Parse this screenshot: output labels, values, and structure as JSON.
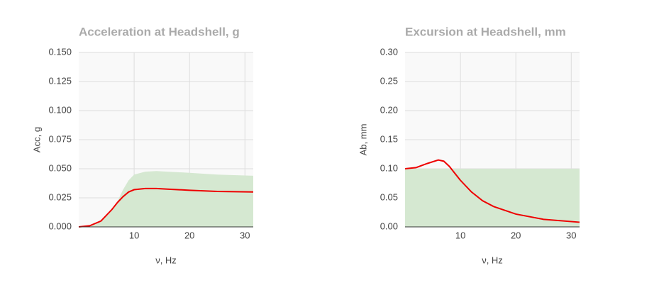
{
  "chart_data": [
    {
      "type": "line",
      "title": "Acceleration at Headshell, g",
      "ylabel": "Acc, g",
      "xlabel": "ν, Hz",
      "x": [
        0,
        2,
        4,
        6,
        7,
        8,
        9,
        10,
        12,
        14,
        16,
        20,
        25,
        31.5
      ],
      "series": [
        {
          "color": "#d5e8d1",
          "area": true,
          "values": [
            0,
            0.001,
            0.005,
            0.015,
            0.022,
            0.032,
            0.04,
            0.045,
            0.0475,
            0.048,
            0.0475,
            0.0465,
            0.045,
            0.044
          ]
        },
        {
          "color": "#ee0000",
          "values": [
            0,
            0.001,
            0.005,
            0.015,
            0.021,
            0.026,
            0.03,
            0.032,
            0.033,
            0.033,
            0.0325,
            0.0315,
            0.0305,
            0.03
          ]
        }
      ],
      "xlim": [
        0,
        31.5
      ],
      "xticks": [
        10,
        20,
        30
      ],
      "ylim": [
        0,
        0.15
      ],
      "yticks": [
        {
          "value": 0,
          "label": "0.000"
        },
        {
          "value": 0.025,
          "label": "0.025"
        },
        {
          "value": 0.05,
          "label": "0.050"
        },
        {
          "value": 0.075,
          "label": "0.075"
        },
        {
          "value": 0.1,
          "label": "0.100"
        },
        {
          "value": 0.125,
          "label": "0.125"
        },
        {
          "value": 0.15,
          "label": "0.150"
        }
      ],
      "grid": true
    },
    {
      "type": "line",
      "title": "Excursion at Headshell, mm",
      "ylabel": "Ab, mm",
      "xlabel": "ν, Hz",
      "x": [
        0,
        2,
        4,
        6,
        7,
        8,
        10,
        12,
        14,
        16,
        20,
        25,
        31.5
      ],
      "series": [
        {
          "color": "#d5e8d1",
          "area": true,
          "values": [
            0.1,
            0.1,
            0.1,
            0.1,
            0.1,
            0.1,
            0.1,
            0.1,
            0.1,
            0.1,
            0.1,
            0.1,
            0.1
          ]
        },
        {
          "color": "#ee0000",
          "values": [
            0.1,
            0.102,
            0.109,
            0.115,
            0.113,
            0.104,
            0.08,
            0.06,
            0.045,
            0.035,
            0.022,
            0.013,
            0.008
          ]
        }
      ],
      "xlim": [
        0,
        31.5
      ],
      "xticks": [
        10,
        20,
        30
      ],
      "ylim": [
        0,
        0.3
      ],
      "yticks": [
        {
          "value": 0,
          "label": "0.00"
        },
        {
          "value": 0.05,
          "label": "0.05"
        },
        {
          "value": 0.1,
          "label": "0.10"
        },
        {
          "value": 0.15,
          "label": "0.15"
        },
        {
          "value": 0.2,
          "label": "0.20"
        },
        {
          "value": 0.25,
          "label": "0.25"
        },
        {
          "value": 0.3,
          "label": "0.30"
        }
      ],
      "grid": true
    }
  ]
}
